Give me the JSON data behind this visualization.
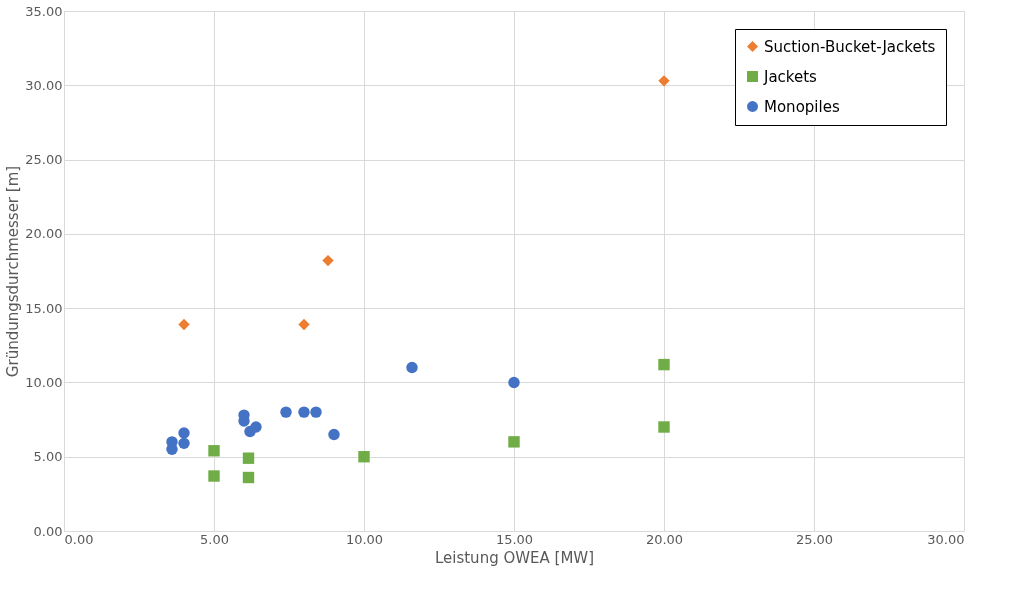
{
  "chart_data": {
    "type": "scatter",
    "xlabel": "Leistung OWEA [MW]",
    "ylabel": "Gründungsdurchmesser [m]",
    "xlim": [
      0,
      30
    ],
    "ylim": [
      0,
      35
    ],
    "xticks": [
      {
        "value": 0,
        "label": "0.00"
      },
      {
        "value": 5,
        "label": "5.00"
      },
      {
        "value": 10,
        "label": "10.00"
      },
      {
        "value": 15,
        "label": "15.00"
      },
      {
        "value": 20,
        "label": "20.00"
      },
      {
        "value": 25,
        "label": "25.00"
      },
      {
        "value": 30,
        "label": "30.00"
      }
    ],
    "yticks": [
      {
        "value": 0,
        "label": "0.00"
      },
      {
        "value": 5,
        "label": "5.00"
      },
      {
        "value": 10,
        "label": "10.00"
      },
      {
        "value": 15,
        "label": "15.00"
      },
      {
        "value": 20,
        "label": "20.00"
      },
      {
        "value": 25,
        "label": "25.00"
      },
      {
        "value": 30,
        "label": "30.00"
      },
      {
        "value": 35,
        "label": "35.00"
      }
    ],
    "grid": true,
    "legend": "top right",
    "series": [
      {
        "name": "Suction-Bucket-Jackets",
        "color": "#ed7d31",
        "marker": "diamond",
        "x": [
          4,
          8,
          8.8,
          20
        ],
        "values": [
          13.9,
          13.9,
          18.2,
          30.3
        ]
      },
      {
        "name": "Jackets",
        "color": "#70ad47",
        "marker": "square",
        "x": [
          5,
          5,
          6.15,
          6.15,
          10,
          15,
          20,
          20
        ],
        "values": [
          5.4,
          3.7,
          4.9,
          3.6,
          5.0,
          6.0,
          11.2,
          7.0
        ]
      },
      {
        "name": "Monopiles",
        "color": "#4472c4",
        "marker": "circle",
        "x": [
          3.6,
          3.6,
          4,
          4,
          6,
          6,
          6.2,
          6.4,
          7.4,
          8,
          8.4,
          9,
          11.6,
          15
        ],
        "values": [
          6.0,
          5.5,
          6.6,
          5.9,
          7.8,
          7.4,
          6.7,
          7.0,
          8.0,
          8.0,
          8.0,
          6.5,
          11.0,
          10.0
        ]
      }
    ]
  }
}
